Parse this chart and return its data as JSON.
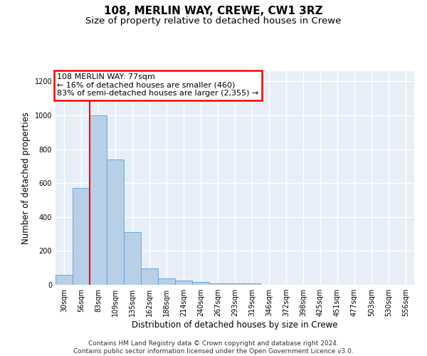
{
  "title": "108, MERLIN WAY, CREWE, CW1 3RZ",
  "subtitle": "Size of property relative to detached houses in Crewe",
  "xlabel": "Distribution of detached houses by size in Crewe",
  "ylabel": "Number of detached properties",
  "bar_color": "#b8cfe8",
  "bar_edge_color": "#5a9fd4",
  "background_color": "#e8eef8",
  "grid_color": "#ffffff",
  "categories": [
    "30sqm",
    "56sqm",
    "83sqm",
    "109sqm",
    "135sqm",
    "162sqm",
    "188sqm",
    "214sqm",
    "240sqm",
    "267sqm",
    "293sqm",
    "319sqm",
    "346sqm",
    "372sqm",
    "398sqm",
    "425sqm",
    "451sqm",
    "477sqm",
    "503sqm",
    "530sqm",
    "556sqm"
  ],
  "values": [
    60,
    570,
    1000,
    740,
    310,
    95,
    38,
    25,
    15,
    8,
    8,
    8,
    0,
    0,
    0,
    0,
    0,
    0,
    0,
    0,
    0
  ],
  "ylim": [
    0,
    1260
  ],
  "yticks": [
    0,
    200,
    400,
    600,
    800,
    1000,
    1200
  ],
  "red_line_x": 1.5,
  "annotation_line1": "108 MERLIN WAY: 77sqm",
  "annotation_line2": "← 16% of detached houses are smaller (460)",
  "annotation_line3": "83% of semi-detached houses are larger (2,355) →",
  "footer_line1": "Contains HM Land Registry data © Crown copyright and database right 2024.",
  "footer_line2": "Contains public sector information licensed under the Open Government Licence v3.0.",
  "title_fontsize": 11,
  "subtitle_fontsize": 9.5,
  "axis_label_fontsize": 8.5,
  "tick_fontsize": 7,
  "annotation_fontsize": 8,
  "footer_fontsize": 6.5
}
